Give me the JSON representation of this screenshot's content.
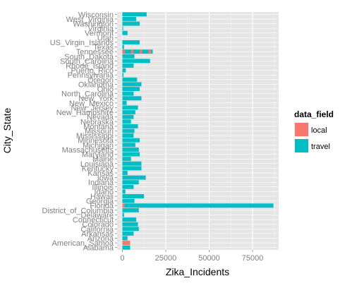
{
  "chart_data": {
    "type": "bar",
    "orientation": "horizontal",
    "stacked": true,
    "xlabel": "Zika_Incidents",
    "ylabel": "City_State",
    "xlim": [
      -3000,
      90000
    ],
    "x_ticks": [
      0,
      25000,
      50000,
      75000
    ],
    "x_tick_labels": [
      "0",
      "25000",
      "50000",
      "75000"
    ],
    "grid": true,
    "legend": {
      "title": "data_field",
      "position": "right",
      "entries": [
        {
          "name": "local",
          "color": "#F8766D"
        },
        {
          "name": "travel",
          "color": "#00BFC4"
        }
      ]
    },
    "categories": [
      "Alabama",
      "American_Samoa",
      "Arizona",
      "Arkansas",
      "California",
      "Colorado",
      "Connecticut",
      "Delaware",
      "District_of_Columbia",
      "Florida",
      "Georgia",
      "Hawaii",
      "Idaho",
      "Illinois",
      "Indiana",
      "Iowa",
      "Kansas",
      "Kentucky",
      "Louisiana",
      "Maine",
      "Maryland",
      "Massachusetts",
      "Michigan",
      "Minnesota",
      "Mississippi",
      "Missouri",
      "Montana",
      "Nebraska",
      "Nevada",
      "New_Hampshire",
      "New_Jersey",
      "New_Mexico",
      "New_York",
      "North_Carolina",
      "Ohio",
      "Oklahoma",
      "Oregon",
      "Pennsylvania",
      "Puerto_Rico",
      "Rhode_Island",
      "South_Carolina",
      "South_Dakota",
      "Tennessee",
      "Texas",
      "US_Virgin_Islands",
      "Utah",
      "Vermont",
      "Virginia",
      "Washington",
      "West_Virginia",
      "Wisconsin"
    ],
    "series": [
      {
        "name": "local",
        "values": [
          0,
          4500,
          0,
          0,
          0,
          0,
          0,
          0,
          0,
          1200,
          0,
          0,
          0,
          0,
          0,
          0,
          0,
          0,
          0,
          0,
          0,
          0,
          0,
          0,
          0,
          0,
          0,
          0,
          0,
          0,
          0,
          0,
          0,
          0,
          0,
          0,
          0,
          0,
          0,
          0,
          0,
          0,
          0,
          0,
          0,
          0,
          0,
          0,
          0,
          0,
          0
        ]
      },
      {
        "name": "travel",
        "values": [
          4500,
          0,
          3000,
          6500,
          9500,
          9000,
          8000,
          1000,
          9500,
          85800,
          7000,
          12500,
          1800,
          6500,
          9500,
          13500,
          3000,
          11000,
          11000,
          5000,
          10000,
          9500,
          7500,
          10000,
          6500,
          7000,
          9000,
          5000,
          6500,
          7500,
          9000,
          2500,
          11000,
          6500,
          10000,
          11000,
          8500,
          700,
          2000,
          6500,
          16000,
          7000,
          17500,
          1000,
          10000,
          0,
          3000,
          500,
          10000,
          8000,
          14000
        ]
      }
    ],
    "local_pattern_bar_index": 42,
    "_note_unused": ""
  }
}
